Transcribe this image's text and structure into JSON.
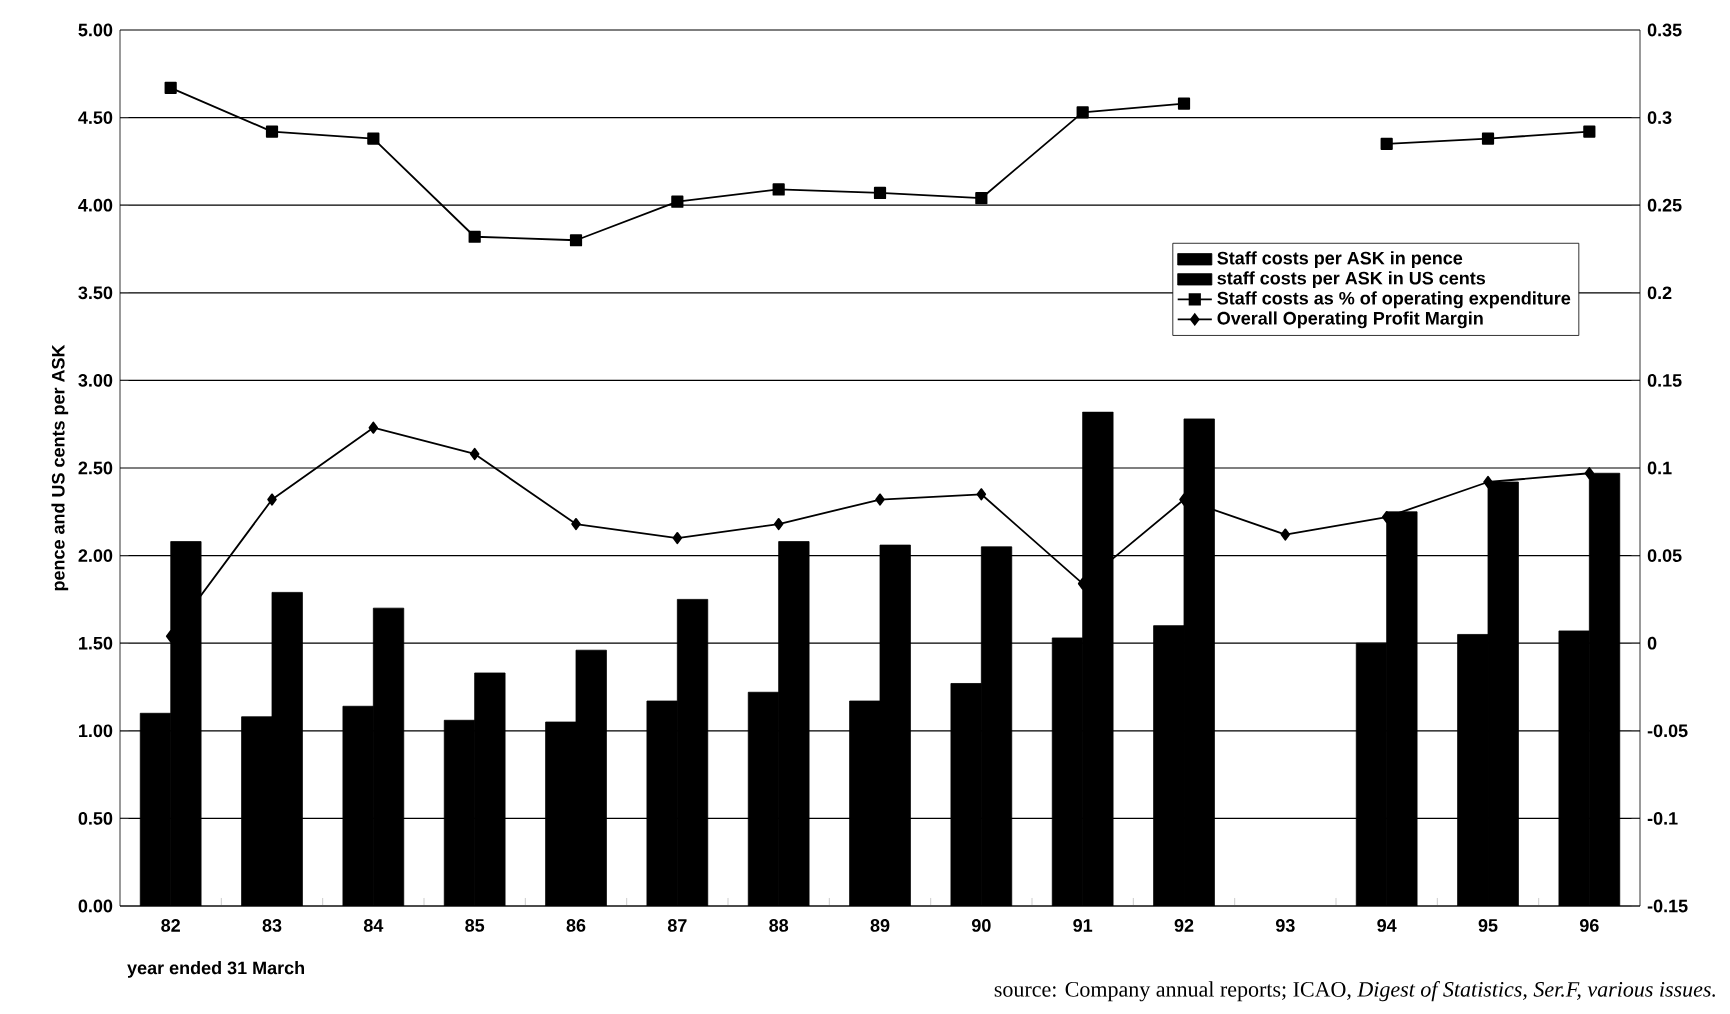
{
  "chart_data": {
    "type": "bar",
    "categories": [
      "82",
      "83",
      "84",
      "85",
      "86",
      "87",
      "88",
      "89",
      "90",
      "91",
      "92",
      "93",
      "94",
      "95",
      "96"
    ],
    "xlabel": "year ended 31 March",
    "ylabel": "pence and US cents per ASK",
    "ylim": [
      0,
      5
    ],
    "yticks": [
      {
        "value": 0,
        "label": "0.00"
      },
      {
        "value": 0.5,
        "label": "0.50"
      },
      {
        "value": 1,
        "label": "1.00"
      },
      {
        "value": 1.5,
        "label": "1.50"
      },
      {
        "value": 2,
        "label": "2.00"
      },
      {
        "value": 2.5,
        "label": "2.50"
      },
      {
        "value": 3,
        "label": "3.00"
      },
      {
        "value": 3.5,
        "label": "3.50"
      },
      {
        "value": 4,
        "label": "4.00"
      },
      {
        "value": 4.5,
        "label": "4.50"
      },
      {
        "value": 5,
        "label": "5.00"
      }
    ],
    "y2lim": [
      -0.15,
      0.35
    ],
    "y2ticks": [
      -0.15,
      -0.1,
      -0.05,
      0,
      0.05,
      0.1,
      0.15,
      0.2,
      0.25,
      0.3,
      0.35
    ],
    "grid": "y",
    "legend": "right",
    "series": [
      {
        "name": "Staff costs per ASK in pence",
        "color": "#000000",
        "values": [
          1.1,
          1.08,
          1.14,
          1.06,
          1.05,
          1.17,
          1.22,
          1.17,
          1.27,
          1.53,
          1.6,
          null,
          1.5,
          1.55,
          1.57
        ]
      },
      {
        "name": "staff costs per ASK in US cents",
        "color": "#000000",
        "values": [
          2.08,
          1.79,
          1.7,
          1.33,
          1.46,
          1.75,
          2.08,
          2.06,
          2.05,
          2.82,
          2.78,
          null,
          2.25,
          2.42,
          2.47
        ]
      },
      {
        "name": "Staff costs as % of operating expenditure",
        "type": "line",
        "axis": "y2",
        "marker": "square",
        "color": "#000000",
        "values": [
          0.317,
          0.292,
          0.288,
          0.232,
          0.23,
          0.252,
          0.259,
          0.257,
          0.254,
          0.303,
          0.308,
          null,
          0.285,
          0.288,
          0.292
        ]
      },
      {
        "name": "Overall Operating Profit Margin",
        "type": "line",
        "axis": "y2",
        "marker": "diamond",
        "color": "#000000",
        "values": [
          0.004,
          0.082,
          0.123,
          0.108,
          0.068,
          0.06,
          0.068,
          0.082,
          0.085,
          0.034,
          0.082,
          0.062,
          0.072,
          0.092,
          0.097
        ]
      }
    ],
    "annotations": [
      "source: Company annual reports; ICAO, *Digest of Statistics, Ser.F, various issues.*"
    ]
  }
}
